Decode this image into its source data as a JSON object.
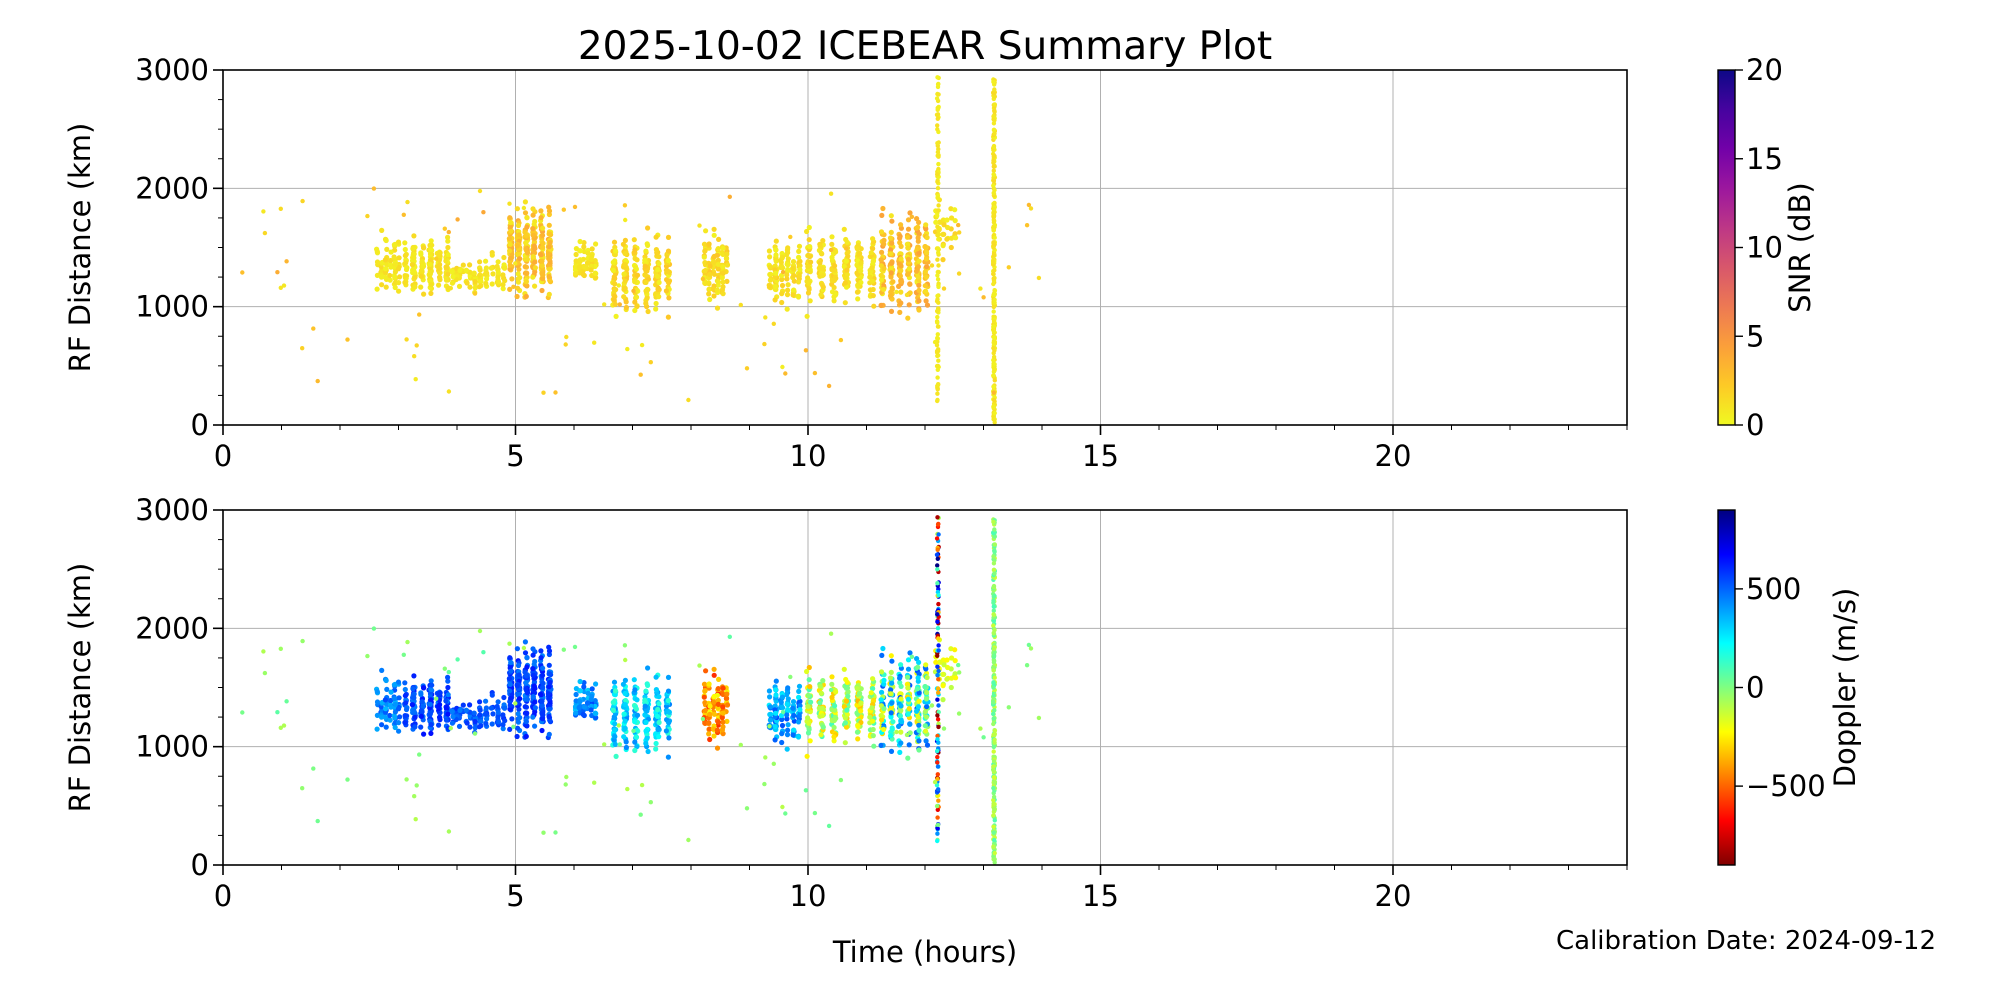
{
  "figure": {
    "title": "2025-10-02 ICEBEAR Summary Plot",
    "xlabel": "Time (hours)",
    "calibration_note": "Calibration Date: 2024-09-12"
  },
  "chart_data": [
    {
      "type": "scatter",
      "panel": "top",
      "ylabel": "RF Distance (km)",
      "xlim": [
        0,
        24
      ],
      "ylim": [
        0,
        3000
      ],
      "x_ticks": [
        0,
        5,
        10,
        15,
        20
      ],
      "y_ticks": [
        0,
        1000,
        2000,
        3000
      ],
      "grid": true,
      "color_variable": "SNR",
      "colorbar": {
        "label": "SNR (dB)",
        "range": [
          0,
          20
        ],
        "ticks": [
          0,
          5,
          10,
          15,
          20
        ],
        "tick_labels": [
          "0",
          "5",
          "10",
          "15",
          "20"
        ],
        "colormap": "plasma_r",
        "colors": [
          "#f0f921",
          "#fdca26",
          "#fb9f3a",
          "#ed7953",
          "#d8576b",
          "#bd3786",
          "#9c179e",
          "#7201a8",
          "#46039f",
          "#0d0887"
        ]
      },
      "clusters": [
        {
          "t": [
            2.6,
            3.05
          ],
          "r": [
            950,
            1720
          ],
          "n": 70,
          "c": [
            0.3,
            1.6
          ]
        },
        {
          "t": [
            3.05,
            3.9
          ],
          "r": [
            1050,
            1650
          ],
          "n": 190,
          "c": [
            0.3,
            1.6
          ]
        },
        {
          "t": [
            3.9,
            4.25
          ],
          "r": [
            1100,
            1450
          ],
          "n": 35,
          "c": [
            0.3,
            1.6
          ]
        },
        {
          "t": [
            4.25,
            4.85
          ],
          "r": [
            1050,
            1500
          ],
          "n": 60,
          "c": [
            0.3,
            1.6
          ]
        },
        {
          "t": [
            4.85,
            5.65
          ],
          "r": [
            1000,
            1950
          ],
          "n": 320,
          "c": [
            0.6,
            4.0
          ]
        },
        {
          "t": [
            6.0,
            6.4
          ],
          "r": [
            1150,
            1600
          ],
          "n": 60,
          "c": [
            0.3,
            1.6
          ]
        },
        {
          "t": [
            6.6,
            7.7
          ],
          "r": [
            850,
            1700
          ],
          "n": 240,
          "c": [
            0.3,
            2.5
          ]
        },
        {
          "t": [
            8.2,
            8.65
          ],
          "r": [
            950,
            1700
          ],
          "n": 110,
          "c": [
            0.3,
            2.5
          ]
        },
        {
          "t": [
            9.3,
            9.9
          ],
          "r": [
            950,
            1650
          ],
          "n": 120,
          "c": [
            0.3,
            2.0
          ]
        },
        {
          "t": [
            9.9,
            11.2
          ],
          "r": [
            900,
            1750
          ],
          "n": 260,
          "c": [
            0.3,
            2.0
          ]
        },
        {
          "t": [
            11.2,
            12.1
          ],
          "r": [
            800,
            1900
          ],
          "n": 250,
          "c": [
            0.6,
            4.5
          ]
        },
        {
          "t": [
            12.15,
            12.55
          ],
          "r": [
            1300,
            2050
          ],
          "n": 35,
          "c": [
            0.3,
            2.0
          ]
        }
      ],
      "lines": [
        {
          "t": 12.22,
          "r": [
            150,
            2950
          ],
          "n": 120,
          "c": [
            0.3,
            1.2
          ]
        },
        {
          "t": 13.18,
          "r": [
            0,
            2920
          ],
          "n": 260,
          "c": [
            0.2,
            1.5
          ]
        }
      ],
      "scatter": {
        "t": [
          0,
          14.2
        ],
        "r": [
          200,
          2000
        ],
        "n": 90,
        "c": [
          0.5,
          4.0
        ]
      }
    },
    {
      "type": "scatter",
      "panel": "bottom",
      "ylabel": "RF Distance (km)",
      "xlim": [
        0,
        24
      ],
      "ylim": [
        0,
        3000
      ],
      "x_ticks": [
        0,
        5,
        10,
        15,
        20
      ],
      "y_ticks": [
        0,
        1000,
        2000,
        3000
      ],
      "grid": true,
      "color_variable": "Doppler",
      "colorbar": {
        "label": "Doppler (m/s)",
        "range": [
          -900,
          900
        ],
        "ticks": [
          -500,
          0,
          500
        ],
        "tick_labels": [
          "−500",
          "0",
          "500"
        ],
        "colormap": "jet_r",
        "colors": [
          "#800000",
          "#ff0000",
          "#ff8000",
          "#ffff00",
          "#80ff80",
          "#00ffff",
          "#0080ff",
          "#0000ff",
          "#000080"
        ]
      },
      "clusters": [
        {
          "t": [
            2.6,
            3.05
          ],
          "r": [
            950,
            1720
          ],
          "n": 70,
          "c": [
            350,
            550
          ]
        },
        {
          "t": [
            3.05,
            3.9
          ],
          "r": [
            1050,
            1650
          ],
          "n": 190,
          "c": [
            450,
            650
          ]
        },
        {
          "t": [
            3.9,
            4.25
          ],
          "r": [
            1100,
            1450
          ],
          "n": 35,
          "c": [
            450,
            600
          ]
        },
        {
          "t": [
            4.25,
            4.85
          ],
          "r": [
            1050,
            1500
          ],
          "n": 60,
          "c": [
            450,
            600
          ]
        },
        {
          "t": [
            4.85,
            5.65
          ],
          "r": [
            1000,
            1950
          ],
          "n": 320,
          "c": [
            450,
            650
          ]
        },
        {
          "t": [
            6.0,
            6.4
          ],
          "r": [
            1150,
            1600
          ],
          "n": 60,
          "c": [
            300,
            550
          ]
        },
        {
          "t": [
            6.6,
            7.7
          ],
          "r": [
            850,
            1700
          ],
          "n": 240,
          "c": [
            120,
            450
          ]
        },
        {
          "t": [
            8.2,
            8.65
          ],
          "r": [
            950,
            1700
          ],
          "n": 110,
          "c": [
            -600,
            -200
          ]
        },
        {
          "t": [
            9.3,
            9.9
          ],
          "r": [
            950,
            1650
          ],
          "n": 120,
          "c": [
            250,
            550
          ]
        },
        {
          "t": [
            9.9,
            11.2
          ],
          "r": [
            900,
            1750
          ],
          "n": 260,
          "c": [
            -350,
            100
          ]
        },
        {
          "t": [
            11.2,
            12.1
          ],
          "r": [
            800,
            1900
          ],
          "n": 250,
          "c": [
            -300,
            550
          ]
        },
        {
          "t": [
            12.15,
            12.55
          ],
          "r": [
            1300,
            2050
          ],
          "n": 35,
          "c": [
            -250,
            -100
          ]
        }
      ],
      "lines": [
        {
          "t": 12.22,
          "r": [
            150,
            2950
          ],
          "n": 120,
          "c": [
            -900,
            900
          ]
        },
        {
          "t": 13.18,
          "r": [
            0,
            2920
          ],
          "n": 260,
          "c": [
            -150,
            100
          ]
        }
      ],
      "scatter": {
        "t": [
          0,
          14.2
        ],
        "r": [
          200,
          2000
        ],
        "n": 90,
        "c": [
          -100,
          80
        ]
      }
    }
  ]
}
